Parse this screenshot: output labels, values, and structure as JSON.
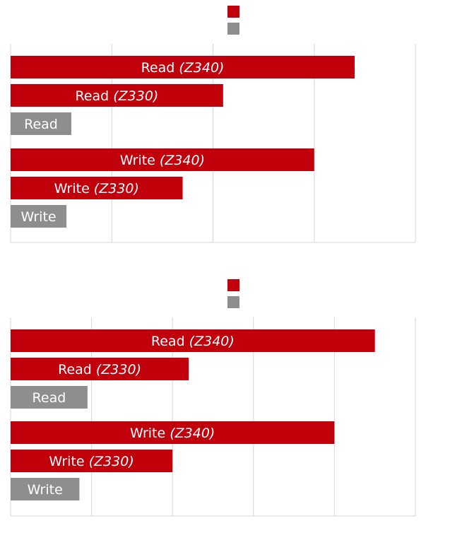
{
  "chart_data": [
    {
      "type": "bar",
      "orientation": "horizontal",
      "legend_position": "top-center",
      "legend": [
        {
          "name": "",
          "color": "#c0000b"
        },
        {
          "name": "",
          "color": "#8e8e8e"
        }
      ],
      "grid": true,
      "xlim": [
        0,
        100
      ],
      "bars": [
        {
          "op": "Read",
          "model": "(Z340)",
          "value": 85,
          "color": "#c0000b"
        },
        {
          "op": "Read",
          "model": "(Z330)",
          "value": 52.5,
          "color": "#c0000b"
        },
        {
          "op": "Read",
          "model": "",
          "value": 15,
          "color": "#8e8e8e"
        },
        {
          "op": "Write",
          "model": "(Z340)",
          "value": 75,
          "color": "#c0000b"
        },
        {
          "op": "Write",
          "model": "(Z330)",
          "value": 42.5,
          "color": "#c0000b"
        },
        {
          "op": "Write",
          "model": "",
          "value": 13.8,
          "color": "#8e8e8e"
        }
      ]
    },
    {
      "type": "bar",
      "orientation": "horizontal",
      "legend_position": "top-center",
      "legend": [
        {
          "name": "",
          "color": "#c0000b"
        },
        {
          "name": "",
          "color": "#8e8e8e"
        }
      ],
      "grid": true,
      "xlim": [
        0,
        100
      ],
      "bars": [
        {
          "op": "Read",
          "model": "(Z340)",
          "value": 90,
          "color": "#c0000b"
        },
        {
          "op": "Read",
          "model": "(Z330)",
          "value": 44,
          "color": "#c0000b"
        },
        {
          "op": "Read",
          "model": "",
          "value": 19,
          "color": "#8e8e8e"
        },
        {
          "op": "Write",
          "model": "(Z340)",
          "value": 80,
          "color": "#c0000b"
        },
        {
          "op": "Write",
          "model": "(Z330)",
          "value": 40,
          "color": "#c0000b"
        },
        {
          "op": "Write",
          "model": "",
          "value": 17,
          "color": "#8e8e8e"
        }
      ]
    }
  ]
}
